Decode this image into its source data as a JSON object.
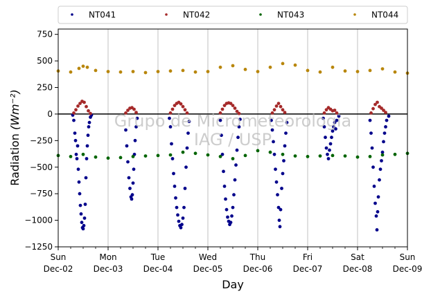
{
  "chart_data": {
    "type": "scatter",
    "title": "",
    "xlabel": "Day",
    "ylabel": "Radiation",
    "ylabel_unit": "(Wm⁻²)",
    "watermark": [
      "Grupo de Micrometeorologia",
      "IAG / USP"
    ],
    "ylim": [
      -1250,
      800
    ],
    "yticks": [
      -1250,
      -1000,
      -750,
      -500,
      -250,
      0,
      250,
      500,
      750
    ],
    "xlim": [
      "2018-12-02",
      "2018-12-09"
    ],
    "xtick_labels": [
      {
        "date": "2018-12-02",
        "day": "Sun",
        "label": "Dec-02"
      },
      {
        "date": "2018-12-03",
        "day": "Mon",
        "label": "Dec-03"
      },
      {
        "date": "2018-12-04",
        "day": "Tue",
        "label": "Dec-04"
      },
      {
        "date": "2018-12-05",
        "day": "Wed",
        "label": "Dec-05"
      },
      {
        "date": "2018-12-06",
        "day": "Thu",
        "label": "Dec-06"
      },
      {
        "date": "2018-12-07",
        "day": "Fri",
        "label": "Dec-07"
      },
      {
        "date": "2018-12-08",
        "day": "Sat",
        "label": "Dec-08"
      },
      {
        "date": "2018-12-09",
        "day": "Sun",
        "label": "Dec-09"
      }
    ],
    "grid": "vertical",
    "zero_line": true,
    "legend_position": "top",
    "series": [
      {
        "name": "NT041",
        "color": "#00008b",
        "points": [
          [
            "2018-12-02T07:00",
            -10
          ],
          [
            "2018-12-02T07:30",
            -60
          ],
          [
            "2018-12-02T08:00",
            -180
          ],
          [
            "2018-12-02T08:20",
            -250
          ],
          [
            "2018-12-02T08:40",
            -380
          ],
          [
            "2018-12-02T09:00",
            -420
          ],
          [
            "2018-12-02T09:20",
            -300
          ],
          [
            "2018-12-02T09:40",
            -520
          ],
          [
            "2018-12-02T10:00",
            -640
          ],
          [
            "2018-12-02T10:20",
            -750
          ],
          [
            "2018-12-02T10:40",
            -860
          ],
          [
            "2018-12-02T11:00",
            -940
          ],
          [
            "2018-12-02T11:20",
            -1020
          ],
          [
            "2018-12-02T11:40",
            -1070
          ],
          [
            "2018-12-02T12:00",
            -1080
          ],
          [
            "2018-12-02T12:20",
            -1050
          ],
          [
            "2018-12-02T12:40",
            -980
          ],
          [
            "2018-12-02T13:00",
            -850
          ],
          [
            "2018-12-02T13:20",
            -600
          ],
          [
            "2018-12-02T13:40",
            -420
          ],
          [
            "2018-12-02T14:00",
            -300
          ],
          [
            "2018-12-02T14:20",
            -200
          ],
          [
            "2018-12-02T14:40",
            -120
          ],
          [
            "2018-12-02T15:00",
            -80
          ],
          [
            "2018-12-02T15:30",
            -30
          ],
          [
            "2018-12-02T16:00",
            -10
          ],
          [
            "2018-12-03T08:30",
            -150
          ],
          [
            "2018-12-03T09:00",
            -300
          ],
          [
            "2018-12-03T09:30",
            -450
          ],
          [
            "2018-12-03T10:00",
            -600
          ],
          [
            "2018-12-03T10:30",
            -700
          ],
          [
            "2018-12-03T11:00",
            -780
          ],
          [
            "2018-12-03T11:20",
            -800
          ],
          [
            "2018-12-03T11:40",
            -760
          ],
          [
            "2018-12-03T12:00",
            -650
          ],
          [
            "2018-12-03T12:20",
            -520
          ],
          [
            "2018-12-03T12:40",
            -380
          ],
          [
            "2018-12-03T13:00",
            -250
          ],
          [
            "2018-12-03T13:30",
            -120
          ],
          [
            "2018-12-03T14:00",
            -40
          ],
          [
            "2018-12-04T05:30",
            -40
          ],
          [
            "2018-12-04T06:00",
            -120
          ],
          [
            "2018-12-04T06:30",
            -280
          ],
          [
            "2018-12-04T07:00",
            -420
          ],
          [
            "2018-12-04T07:30",
            -560
          ],
          [
            "2018-12-04T08:00",
            -680
          ],
          [
            "2018-12-04T08:30",
            -790
          ],
          [
            "2018-12-04T09:00",
            -880
          ],
          [
            "2018-12-04T09:30",
            -950
          ],
          [
            "2018-12-04T10:00",
            -1010
          ],
          [
            "2018-12-04T10:30",
            -1050
          ],
          [
            "2018-12-04T11:00",
            -1070
          ],
          [
            "2018-12-04T11:30",
            -1040
          ],
          [
            "2018-12-04T12:00",
            -980
          ],
          [
            "2018-12-04T12:30",
            -880
          ],
          [
            "2018-12-04T13:00",
            -700
          ],
          [
            "2018-12-04T13:30",
            -500
          ],
          [
            "2018-12-04T14:00",
            -320
          ],
          [
            "2018-12-04T14:30",
            -180
          ],
          [
            "2018-12-04T15:00",
            -70
          ],
          [
            "2018-12-05T06:00",
            -60
          ],
          [
            "2018-12-05T06:30",
            -200
          ],
          [
            "2018-12-05T07:00",
            -380
          ],
          [
            "2018-12-05T07:30",
            -540
          ],
          [
            "2018-12-05T08:00",
            -680
          ],
          [
            "2018-12-05T08:30",
            -800
          ],
          [
            "2018-12-05T09:00",
            -900
          ],
          [
            "2018-12-05T09:30",
            -970
          ],
          [
            "2018-12-05T10:00",
            -1010
          ],
          [
            "2018-12-05T10:30",
            -1040
          ],
          [
            "2018-12-05T11:00",
            -1020
          ],
          [
            "2018-12-05T11:30",
            -960
          ],
          [
            "2018-12-05T12:00",
            -880
          ],
          [
            "2018-12-05T12:30",
            -760
          ],
          [
            "2018-12-05T13:00",
            -620
          ],
          [
            "2018-12-05T13:30",
            -480
          ],
          [
            "2018-12-05T14:00",
            -340
          ],
          [
            "2018-12-05T14:30",
            -220
          ],
          [
            "2018-12-05T15:00",
            -120
          ],
          [
            "2018-12-05T15:30",
            -50
          ],
          [
            "2018-12-06T06:30",
            -60
          ],
          [
            "2018-12-06T07:00",
            -150
          ],
          [
            "2018-12-06T07:30",
            -260
          ],
          [
            "2018-12-06T08:00",
            -380
          ],
          [
            "2018-12-06T08:30",
            -520
          ],
          [
            "2018-12-06T09:00",
            -640
          ],
          [
            "2018-12-06T09:30",
            -760
          ],
          [
            "2018-12-06T10:00",
            -880
          ],
          [
            "2018-12-06T10:20",
            -1000
          ],
          [
            "2018-12-06T10:40",
            -1060
          ],
          [
            "2018-12-06T11:00",
            -900
          ],
          [
            "2018-12-06T11:30",
            -700
          ],
          [
            "2018-12-06T12:00",
            -560
          ],
          [
            "2018-12-06T12:30",
            -440
          ],
          [
            "2018-12-06T13:00",
            -300
          ],
          [
            "2018-12-06T13:30",
            -180
          ],
          [
            "2018-12-06T14:00",
            -80
          ],
          [
            "2018-12-07T07:30",
            -40
          ],
          [
            "2018-12-07T08:00",
            -120
          ],
          [
            "2018-12-07T08:30",
            -220
          ],
          [
            "2018-12-07T09:00",
            -320
          ],
          [
            "2018-12-07T09:30",
            -380
          ],
          [
            "2018-12-07T10:00",
            -420
          ],
          [
            "2018-12-07T10:30",
            -340
          ],
          [
            "2018-12-07T11:00",
            -280
          ],
          [
            "2018-12-07T11:30",
            -220
          ],
          [
            "2018-12-07T12:00",
            -160
          ],
          [
            "2018-12-07T12:30",
            -120
          ],
          [
            "2018-12-07T13:00",
            -80
          ],
          [
            "2018-12-07T13:30",
            -140
          ],
          [
            "2018-12-07T14:00",
            -60
          ],
          [
            "2018-12-07T15:00",
            -20
          ],
          [
            "2018-12-08T06:00",
            -60
          ],
          [
            "2018-12-08T06:30",
            -180
          ],
          [
            "2018-12-08T07:00",
            -320
          ],
          [
            "2018-12-08T07:30",
            -500
          ],
          [
            "2018-12-08T08:00",
            -680
          ],
          [
            "2018-12-08T08:30",
            -840
          ],
          [
            "2018-12-08T09:00",
            -960
          ],
          [
            "2018-12-08T09:20",
            -1090
          ],
          [
            "2018-12-08T09:40",
            -920
          ],
          [
            "2018-12-08T10:00",
            -780
          ],
          [
            "2018-12-08T10:30",
            -620
          ],
          [
            "2018-12-08T11:00",
            -520
          ],
          [
            "2018-12-08T11:30",
            -440
          ],
          [
            "2018-12-08T12:00",
            -360
          ],
          [
            "2018-12-08T12:30",
            -260
          ],
          [
            "2018-12-08T13:00",
            -180
          ],
          [
            "2018-12-08T13:30",
            -120
          ],
          [
            "2018-12-08T14:00",
            -60
          ],
          [
            "2018-12-08T15:00",
            -20
          ]
        ]
      },
      {
        "name": "NT042",
        "color": "#a52a2a",
        "points": [
          [
            "2018-12-02T07:30",
            10
          ],
          [
            "2018-12-02T08:30",
            40
          ],
          [
            "2018-12-02T09:30",
            75
          ],
          [
            "2018-12-02T10:30",
            100
          ],
          [
            "2018-12-02T11:30",
            120
          ],
          [
            "2018-12-02T12:30",
            110
          ],
          [
            "2018-12-02T13:30",
            70
          ],
          [
            "2018-12-02T14:30",
            30
          ],
          [
            "2018-12-02T15:30",
            5
          ],
          [
            "2018-12-03T08:30",
            10
          ],
          [
            "2018-12-03T09:30",
            35
          ],
          [
            "2018-12-03T10:30",
            55
          ],
          [
            "2018-12-03T11:30",
            60
          ],
          [
            "2018-12-03T12:30",
            45
          ],
          [
            "2018-12-03T13:30",
            15
          ],
          [
            "2018-12-04T06:00",
            10
          ],
          [
            "2018-12-04T07:00",
            45
          ],
          [
            "2018-12-04T08:00",
            80
          ],
          [
            "2018-12-04T09:00",
            100
          ],
          [
            "2018-12-04T10:00",
            110
          ],
          [
            "2018-12-04T11:00",
            95
          ],
          [
            "2018-12-04T12:00",
            70
          ],
          [
            "2018-12-04T13:00",
            40
          ],
          [
            "2018-12-04T14:00",
            10
          ],
          [
            "2018-12-05T06:00",
            10
          ],
          [
            "2018-12-05T07:00",
            45
          ],
          [
            "2018-12-05T08:00",
            80
          ],
          [
            "2018-12-05T09:00",
            100
          ],
          [
            "2018-12-05T10:00",
            105
          ],
          [
            "2018-12-05T11:00",
            100
          ],
          [
            "2018-12-05T12:00",
            80
          ],
          [
            "2018-12-05T13:00",
            55
          ],
          [
            "2018-12-05T14:00",
            25
          ],
          [
            "2018-12-05T15:00",
            5
          ],
          [
            "2018-12-06T07:00",
            10
          ],
          [
            "2018-12-06T08:00",
            40
          ],
          [
            "2018-12-06T09:00",
            75
          ],
          [
            "2018-12-06T10:00",
            100
          ],
          [
            "2018-12-06T11:00",
            70
          ],
          [
            "2018-12-06T12:00",
            40
          ],
          [
            "2018-12-06T13:00",
            15
          ],
          [
            "2018-12-07T08:00",
            10
          ],
          [
            "2018-12-07T09:00",
            40
          ],
          [
            "2018-12-07T10:00",
            60
          ],
          [
            "2018-12-07T11:00",
            45
          ],
          [
            "2018-12-07T12:00",
            30
          ],
          [
            "2018-12-07T13:00",
            35
          ],
          [
            "2018-12-07T14:00",
            10
          ],
          [
            "2018-12-08T06:30",
            10
          ],
          [
            "2018-12-08T07:30",
            50
          ],
          [
            "2018-12-08T08:30",
            90
          ],
          [
            "2018-12-08T09:30",
            110
          ],
          [
            "2018-12-08T10:30",
            70
          ],
          [
            "2018-12-08T11:30",
            55
          ],
          [
            "2018-12-08T12:30",
            35
          ],
          [
            "2018-12-08T13:30",
            15
          ]
        ]
      },
      {
        "name": "NT043",
        "color": "#006400",
        "points": [
          [
            "2018-12-02T00:00",
            -390
          ],
          [
            "2018-12-02T06:00",
            -400
          ],
          [
            "2018-12-02T12:00",
            -380
          ],
          [
            "2018-12-02T18:00",
            -405
          ],
          [
            "2018-12-03T00:00",
            -415
          ],
          [
            "2018-12-03T06:00",
            -410
          ],
          [
            "2018-12-03T12:00",
            -400
          ],
          [
            "2018-12-03T18:00",
            -395
          ],
          [
            "2018-12-04T00:00",
            -390
          ],
          [
            "2018-12-04T06:00",
            -385
          ],
          [
            "2018-12-04T12:00",
            -360
          ],
          [
            "2018-12-04T18:00",
            -370
          ],
          [
            "2018-12-05T00:00",
            -385
          ],
          [
            "2018-12-05T06:00",
            -400
          ],
          [
            "2018-12-05T12:00",
            -420
          ],
          [
            "2018-12-05T18:00",
            -390
          ],
          [
            "2018-12-06T00:00",
            -345
          ],
          [
            "2018-12-06T06:00",
            -360
          ],
          [
            "2018-12-06T12:00",
            -380
          ],
          [
            "2018-12-06T18:00",
            -395
          ],
          [
            "2018-12-07T00:00",
            -400
          ],
          [
            "2018-12-07T06:00",
            -395
          ],
          [
            "2018-12-07T12:00",
            -390
          ],
          [
            "2018-12-07T18:00",
            -395
          ],
          [
            "2018-12-08T00:00",
            -405
          ],
          [
            "2018-12-08T06:00",
            -400
          ],
          [
            "2018-12-08T12:00",
            -385
          ],
          [
            "2018-12-08T18:00",
            -380
          ],
          [
            "2018-12-09T00:00",
            -370
          ]
        ]
      },
      {
        "name": "NT044",
        "color": "#b8860b",
        "points": [
          [
            "2018-12-02T00:00",
            405
          ],
          [
            "2018-12-02T06:00",
            395
          ],
          [
            "2018-12-02T10:00",
            430
          ],
          [
            "2018-12-02T12:00",
            450
          ],
          [
            "2018-12-02T14:00",
            440
          ],
          [
            "2018-12-02T18:00",
            410
          ],
          [
            "2018-12-03T00:00",
            400
          ],
          [
            "2018-12-03T06:00",
            395
          ],
          [
            "2018-12-03T12:00",
            400
          ],
          [
            "2018-12-03T18:00",
            390
          ],
          [
            "2018-12-04T00:00",
            400
          ],
          [
            "2018-12-04T06:00",
            405
          ],
          [
            "2018-12-04T12:00",
            410
          ],
          [
            "2018-12-04T18:00",
            395
          ],
          [
            "2018-12-05T00:00",
            400
          ],
          [
            "2018-12-05T06:00",
            440
          ],
          [
            "2018-12-05T12:00",
            455
          ],
          [
            "2018-12-05T18:00",
            420
          ],
          [
            "2018-12-06T00:00",
            400
          ],
          [
            "2018-12-06T06:00",
            440
          ],
          [
            "2018-12-06T12:00",
            475
          ],
          [
            "2018-12-06T18:00",
            460
          ],
          [
            "2018-12-07T00:00",
            410
          ],
          [
            "2018-12-07T06:00",
            395
          ],
          [
            "2018-12-07T12:00",
            440
          ],
          [
            "2018-12-07T18:00",
            405
          ],
          [
            "2018-12-08T00:00",
            400
          ],
          [
            "2018-12-08T06:00",
            410
          ],
          [
            "2018-12-08T12:00",
            425
          ],
          [
            "2018-12-08T18:00",
            395
          ],
          [
            "2018-12-09T00:00",
            385
          ]
        ]
      }
    ]
  }
}
